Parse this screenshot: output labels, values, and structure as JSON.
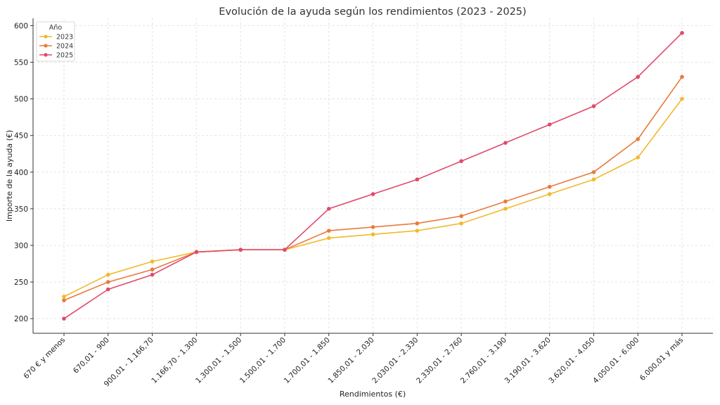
{
  "chart_data": {
    "type": "line",
    "title": "Evolución de la ayuda según los rendimientos (2023 - 2025)",
    "xlabel": "Rendimientos (€)",
    "ylabel": "Importe de la ayuda (€)",
    "categories": [
      "670 € y menos",
      "670,01 - 900",
      "900,01 - 1.166,70",
      "1.166,70 - 1.300",
      "1.300,01 - 1.500",
      "1.500,01 - 1.700",
      "1.700,01 - 1.850",
      "1.850,01 - 2.030",
      "2.030,01 - 2.330",
      "2.330,01 - 2.760",
      "2.760,01 - 3.190",
      "3.190,01 - 3.620",
      "3.620,01 - 4.050",
      "4.050,01 - 6.000",
      "6.000,01 y más"
    ],
    "ylim": [
      180,
      610
    ],
    "yticks": [
      200,
      250,
      300,
      350,
      400,
      450,
      500,
      550,
      600
    ],
    "grid": true,
    "legend": {
      "title": "Año",
      "position": "top-left"
    },
    "series": [
      {
        "name": "2023",
        "color": "#f2b92b",
        "values": [
          230,
          260,
          278,
          291,
          294,
          294,
          310,
          315,
          320,
          330,
          350,
          370,
          390,
          420,
          500
        ]
      },
      {
        "name": "2024",
        "color": "#e87b3c",
        "values": [
          225,
          250,
          267,
          291,
          294,
          294,
          320,
          325,
          330,
          340,
          360,
          380,
          400,
          445,
          530
        ]
      },
      {
        "name": "2025",
        "color": "#df4a6b",
        "values": [
          200,
          240,
          260,
          291,
          294,
          294,
          350,
          370,
          390,
          415,
          440,
          465,
          490,
          530,
          590
        ]
      }
    ]
  }
}
